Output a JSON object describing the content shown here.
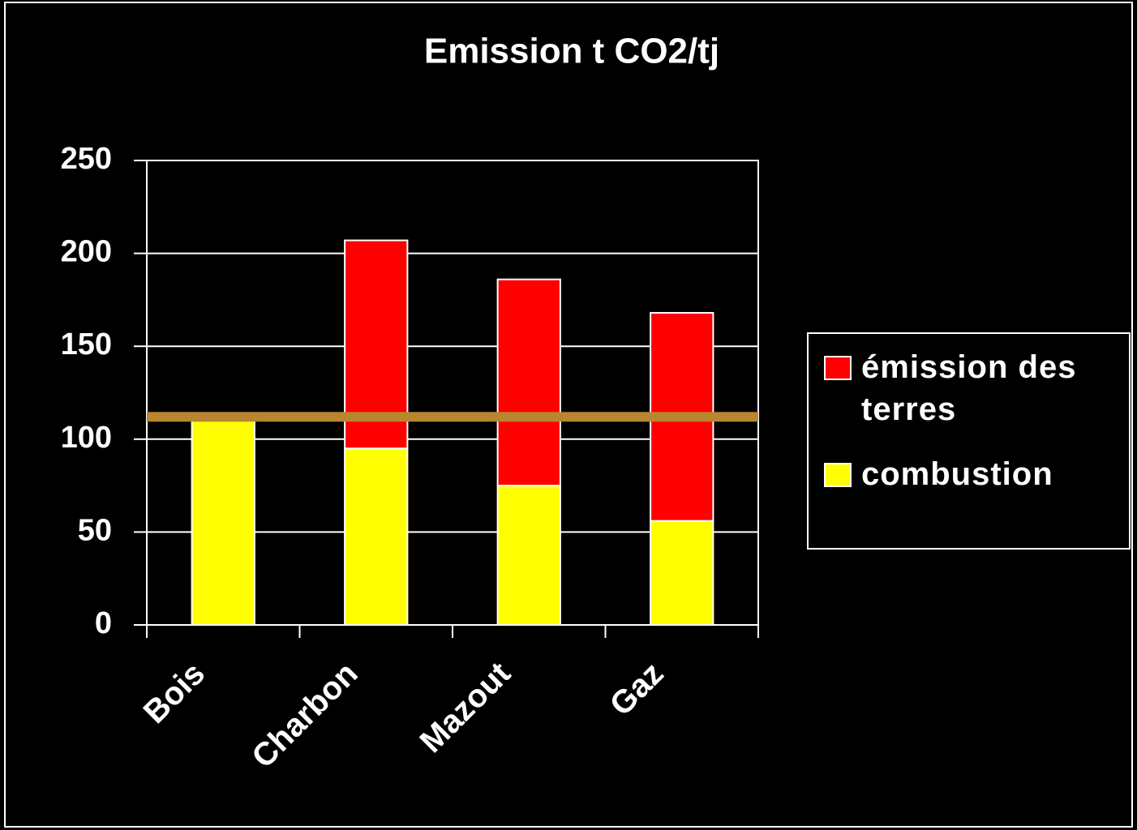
{
  "chart_data": {
    "type": "stacked_bar",
    "title": "Emission t CO2/tj",
    "categories": [
      "Bois",
      "Charbon",
      "Mazout",
      "Gaz"
    ],
    "series": [
      {
        "name": "combustion",
        "color": "#ffff00",
        "values": [
          110,
          95,
          75,
          56
        ]
      },
      {
        "name": "émission des terres",
        "color": "#ff0000",
        "values": [
          null,
          112,
          111,
          112
        ]
      }
    ],
    "hline": {
      "value": 112,
      "color": "#b8862e"
    },
    "ylim": [
      0,
      250
    ],
    "yticks": [
      0,
      50,
      100,
      150,
      200,
      250
    ],
    "grid": true
  }
}
